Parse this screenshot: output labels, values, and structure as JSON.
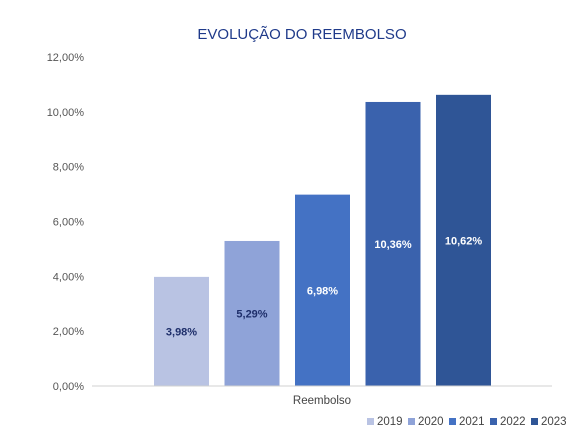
{
  "chart_data": {
    "type": "bar",
    "title": "EVOLUÇÃO DO REEMBOLSO",
    "categories": [
      "Reembolso"
    ],
    "series": [
      {
        "name": "2019",
        "values": [
          3.98
        ],
        "label": "3,98%",
        "color": "#b9c3e3",
        "label_color": "#1f2f6b"
      },
      {
        "name": "2020",
        "values": [
          5.29
        ],
        "label": "5,29%",
        "color": "#8fa3d8",
        "label_color": "#1f2f6b"
      },
      {
        "name": "2021",
        "values": [
          6.98
        ],
        "label": "6,98%",
        "color": "#4472c4",
        "label_color": "#ffffff"
      },
      {
        "name": "2022",
        "values": [
          10.36
        ],
        "label": "10,36%",
        "color": "#3a62ad",
        "label_color": "#ffffff"
      },
      {
        "name": "2023",
        "values": [
          10.62
        ],
        "label": "10,62%",
        "color": "#2f5596",
        "label_color": "#ffffff"
      }
    ],
    "yticks": [
      0,
      2,
      4,
      6,
      8,
      10,
      12
    ],
    "ytick_labels": [
      "0,00%",
      "2,00%",
      "4,00%",
      "6,00%",
      "8,00%",
      "10,00%",
      "12,00%"
    ],
    "ylim": [
      0,
      12
    ],
    "xlabel": "",
    "ylabel": "",
    "grid": false,
    "legend": "bottom-right"
  }
}
